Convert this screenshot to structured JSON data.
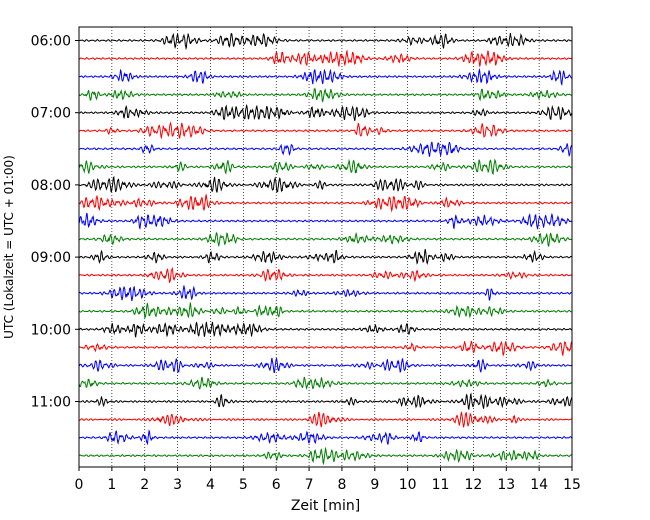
{
  "chart_data": {
    "type": "line",
    "title": "",
    "xlabel": "Zeit  [min]",
    "ylabel": "UTC (Lokalzeit = UTC + 01:00)",
    "xlim": [
      0,
      15
    ],
    "x_ticks": [
      0,
      1,
      2,
      3,
      4,
      5,
      6,
      7,
      8,
      9,
      10,
      11,
      12,
      13,
      14,
      15
    ],
    "x_tick_labels": [
      "0",
      "1",
      "2",
      "3",
      "4",
      "5",
      "6",
      "7",
      "8",
      "9",
      "10",
      "11",
      "12",
      "13",
      "14",
      "15"
    ],
    "y_tick_labels": [
      "06:00",
      "07:00",
      "08:00",
      "09:00",
      "10:00",
      "11:00"
    ],
    "grid": "vertical dotted",
    "trace_colors": [
      "#000000",
      "#ff0000",
      "#0000ff",
      "#007f00"
    ],
    "traces": [
      {
        "start": "06:00",
        "color": "#000000"
      },
      {
        "start": "06:15",
        "color": "#ff0000"
      },
      {
        "start": "06:30",
        "color": "#0000ff"
      },
      {
        "start": "06:45",
        "color": "#007f00"
      },
      {
        "start": "07:00",
        "color": "#000000"
      },
      {
        "start": "07:15",
        "color": "#ff0000"
      },
      {
        "start": "07:30",
        "color": "#0000ff"
      },
      {
        "start": "07:45",
        "color": "#007f00"
      },
      {
        "start": "08:00",
        "color": "#000000"
      },
      {
        "start": "08:15",
        "color": "#ff0000"
      },
      {
        "start": "08:30",
        "color": "#0000ff"
      },
      {
        "start": "08:45",
        "color": "#007f00"
      },
      {
        "start": "09:00",
        "color": "#000000"
      },
      {
        "start": "09:15",
        "color": "#ff0000"
      },
      {
        "start": "09:30",
        "color": "#0000ff"
      },
      {
        "start": "09:45",
        "color": "#007f00"
      },
      {
        "start": "10:00",
        "color": "#000000"
      },
      {
        "start": "10:15",
        "color": "#ff0000"
      },
      {
        "start": "10:30",
        "color": "#0000ff"
      },
      {
        "start": "10:45",
        "color": "#007f00"
      },
      {
        "start": "11:00",
        "color": "#000000"
      },
      {
        "start": "11:15",
        "color": "#ff0000"
      },
      {
        "start": "11:30",
        "color": "#0000ff"
      },
      {
        "start": "11:45",
        "color": "#007f00"
      }
    ]
  }
}
